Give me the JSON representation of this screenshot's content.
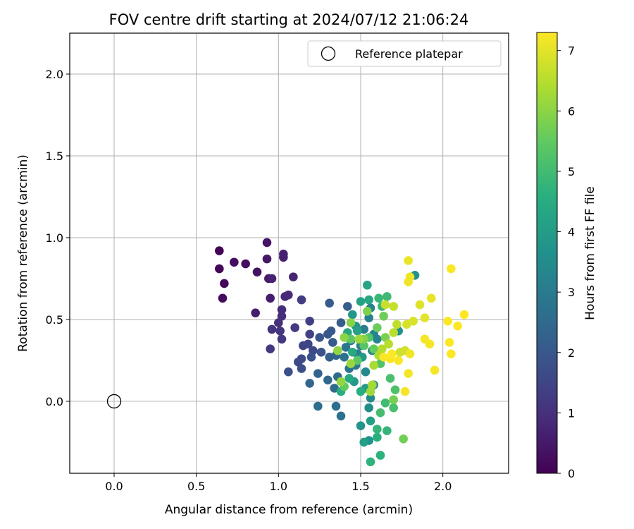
{
  "chart_data": {
    "type": "scatter",
    "title": "FOV centre drift starting at 2024/07/12 21:06:24",
    "xlabel": "Angular distance from reference (arcmin)",
    "ylabel": "Rotation from reference (arcmin)",
    "xlim": [
      -0.27,
      2.4
    ],
    "ylim": [
      -0.44,
      2.25
    ],
    "xticks": [
      0.0,
      0.5,
      1.0,
      1.5,
      2.0
    ],
    "yticks": [
      0.0,
      0.5,
      1.0,
      1.5,
      2.0
    ],
    "xtick_labels": [
      "0.0",
      "0.5",
      "1.0",
      "1.5",
      "2.0"
    ],
    "ytick_labels": [
      "0.0",
      "0.5",
      "1.0",
      "1.5",
      "2.0"
    ],
    "grid": true,
    "legend": {
      "label": "Reference platepar",
      "placement": "top-right",
      "marker": "open-circle"
    },
    "reference_point": {
      "x": 0.0,
      "y": 0.0
    },
    "colorbar": {
      "label": "Hours from first FF file",
      "range": [
        0,
        7.3
      ],
      "ticks": [
        0,
        1,
        2,
        3,
        4,
        5,
        6,
        7
      ],
      "tick_labels": [
        "0",
        "1",
        "2",
        "3",
        "4",
        "5",
        "6",
        "7"
      ],
      "colormap": "viridis",
      "colors": [
        "#440154",
        "#472d7b",
        "#3b528b",
        "#2c728e",
        "#21918c",
        "#28ae80",
        "#5ec962",
        "#addc30",
        "#fde725"
      ]
    },
    "points": [
      {
        "x": 0.64,
        "y": 0.92,
        "h": 0.05
      },
      {
        "x": 0.64,
        "y": 0.81,
        "h": 0.1
      },
      {
        "x": 0.67,
        "y": 0.72,
        "h": 0.15
      },
      {
        "x": 0.66,
        "y": 0.63,
        "h": 0.2
      },
      {
        "x": 0.73,
        "y": 0.85,
        "h": 0.25
      },
      {
        "x": 0.8,
        "y": 0.84,
        "h": 0.3
      },
      {
        "x": 0.87,
        "y": 0.79,
        "h": 0.35
      },
      {
        "x": 0.93,
        "y": 0.97,
        "h": 0.4
      },
      {
        "x": 0.93,
        "y": 0.87,
        "h": 0.45
      },
      {
        "x": 0.94,
        "y": 0.75,
        "h": 0.5
      },
      {
        "x": 0.95,
        "y": 0.63,
        "h": 0.55
      },
      {
        "x": 0.86,
        "y": 0.54,
        "h": 0.6
      },
      {
        "x": 1.03,
        "y": 0.9,
        "h": 0.62
      },
      {
        "x": 1.03,
        "y": 0.88,
        "h": 0.65
      },
      {
        "x": 0.96,
        "y": 0.75,
        "h": 0.7
      },
      {
        "x": 1.09,
        "y": 0.76,
        "h": 0.75
      },
      {
        "x": 1.04,
        "y": 0.64,
        "h": 0.8
      },
      {
        "x": 1.06,
        "y": 0.65,
        "h": 0.85
      },
      {
        "x": 1.02,
        "y": 0.56,
        "h": 0.9
      },
      {
        "x": 1.02,
        "y": 0.52,
        "h": 0.95
      },
      {
        "x": 1.0,
        "y": 0.48,
        "h": 1.0
      },
      {
        "x": 0.96,
        "y": 0.44,
        "h": 1.05
      },
      {
        "x": 1.01,
        "y": 0.43,
        "h": 1.1
      },
      {
        "x": 1.02,
        "y": 0.38,
        "h": 1.15
      },
      {
        "x": 0.95,
        "y": 0.32,
        "h": 1.2
      },
      {
        "x": 1.1,
        "y": 0.45,
        "h": 1.25
      },
      {
        "x": 1.14,
        "y": 0.62,
        "h": 1.3
      },
      {
        "x": 1.19,
        "y": 0.49,
        "h": 1.35
      },
      {
        "x": 1.19,
        "y": 0.41,
        "h": 1.4
      },
      {
        "x": 1.15,
        "y": 0.34,
        "h": 1.45
      },
      {
        "x": 1.18,
        "y": 0.35,
        "h": 1.5
      },
      {
        "x": 1.21,
        "y": 0.31,
        "h": 1.55
      },
      {
        "x": 1.12,
        "y": 0.24,
        "h": 1.6
      },
      {
        "x": 1.14,
        "y": 0.26,
        "h": 1.65
      },
      {
        "x": 1.14,
        "y": 0.2,
        "h": 1.7
      },
      {
        "x": 1.06,
        "y": 0.18,
        "h": 1.75
      },
      {
        "x": 1.2,
        "y": 0.27,
        "h": 1.8
      },
      {
        "x": 1.26,
        "y": 0.3,
        "h": 1.85
      },
      {
        "x": 1.25,
        "y": 0.39,
        "h": 1.9
      },
      {
        "x": 1.3,
        "y": 0.41,
        "h": 1.95
      },
      {
        "x": 1.32,
        "y": 0.43,
        "h": 2.0
      },
      {
        "x": 1.33,
        "y": 0.36,
        "h": 2.05
      },
      {
        "x": 1.31,
        "y": 0.6,
        "h": 2.1
      },
      {
        "x": 1.38,
        "y": 0.48,
        "h": 2.15
      },
      {
        "x": 1.42,
        "y": 0.58,
        "h": 2.2
      },
      {
        "x": 1.31,
        "y": 0.27,
        "h": 2.25
      },
      {
        "x": 1.35,
        "y": 0.28,
        "h": 2.3
      },
      {
        "x": 1.24,
        "y": 0.17,
        "h": 2.35
      },
      {
        "x": 1.19,
        "y": 0.11,
        "h": 2.4
      },
      {
        "x": 1.3,
        "y": 0.13,
        "h": 2.45
      },
      {
        "x": 1.34,
        "y": 0.08,
        "h": 2.5
      },
      {
        "x": 1.36,
        "y": 0.15,
        "h": 2.55
      },
      {
        "x": 1.24,
        "y": -0.03,
        "h": 2.6
      },
      {
        "x": 1.35,
        "y": -0.03,
        "h": 2.65
      },
      {
        "x": 1.38,
        "y": -0.09,
        "h": 2.7
      },
      {
        "x": 1.4,
        "y": 0.27,
        "h": 2.75
      },
      {
        "x": 1.43,
        "y": 0.2,
        "h": 2.8
      },
      {
        "x": 1.41,
        "y": 0.33,
        "h": 2.85
      },
      {
        "x": 1.44,
        "y": 0.37,
        "h": 2.9
      },
      {
        "x": 1.47,
        "y": 0.22,
        "h": 2.95
      },
      {
        "x": 1.48,
        "y": 0.29,
        "h": 3.0
      },
      {
        "x": 1.5,
        "y": 0.34,
        "h": 3.05
      },
      {
        "x": 1.52,
        "y": 0.44,
        "h": 3.1
      },
      {
        "x": 1.55,
        "y": 0.51,
        "h": 3.15
      },
      {
        "x": 1.56,
        "y": 0.57,
        "h": 3.2
      },
      {
        "x": 1.58,
        "y": 0.41,
        "h": 3.25
      },
      {
        "x": 1.6,
        "y": 0.38,
        "h": 3.3
      },
      {
        "x": 1.57,
        "y": 0.31,
        "h": 3.35
      },
      {
        "x": 1.53,
        "y": 0.18,
        "h": 3.4
      },
      {
        "x": 1.56,
        "y": 0.02,
        "h": 3.45
      },
      {
        "x": 1.58,
        "y": 0.1,
        "h": 3.5
      },
      {
        "x": 1.55,
        "y": -0.04,
        "h": 3.55
      },
      {
        "x": 1.73,
        "y": 0.43,
        "h": 3.6
      },
      {
        "x": 1.83,
        "y": 0.77,
        "h": 3.65
      },
      {
        "x": 1.55,
        "y": -0.24,
        "h": 3.7
      },
      {
        "x": 1.5,
        "y": -0.15,
        "h": 3.75
      },
      {
        "x": 1.45,
        "y": 0.53,
        "h": 3.8
      },
      {
        "x": 1.47,
        "y": 0.46,
        "h": 3.85
      },
      {
        "x": 1.51,
        "y": 0.27,
        "h": 3.9
      },
      {
        "x": 1.46,
        "y": 0.12,
        "h": 3.95
      },
      {
        "x": 1.53,
        "y": 0.08,
        "h": 4.0
      },
      {
        "x": 1.52,
        "y": -0.25,
        "h": 4.05
      },
      {
        "x": 1.56,
        "y": -0.12,
        "h": 4.1
      },
      {
        "x": 1.48,
        "y": 0.43,
        "h": 4.15
      },
      {
        "x": 1.5,
        "y": 0.61,
        "h": 4.2
      },
      {
        "x": 1.54,
        "y": 0.71,
        "h": 4.25
      },
      {
        "x": 1.55,
        "y": 0.62,
        "h": 4.3
      },
      {
        "x": 1.42,
        "y": 0.42,
        "h": 4.35
      },
      {
        "x": 1.45,
        "y": 0.3,
        "h": 4.4
      },
      {
        "x": 1.43,
        "y": 0.14,
        "h": 4.45
      },
      {
        "x": 1.38,
        "y": 0.06,
        "h": 4.5
      },
      {
        "x": 1.5,
        "y": 0.06,
        "h": 4.55
      },
      {
        "x": 1.6,
        "y": -0.22,
        "h": 4.6
      },
      {
        "x": 1.62,
        "y": -0.33,
        "h": 4.65
      },
      {
        "x": 1.56,
        "y": -0.37,
        "h": 4.7
      },
      {
        "x": 1.6,
        "y": -0.17,
        "h": 4.75
      },
      {
        "x": 1.66,
        "y": -0.18,
        "h": 4.8
      },
      {
        "x": 1.61,
        "y": 0.63,
        "h": 4.85
      },
      {
        "x": 1.63,
        "y": 0.58,
        "h": 4.9
      },
      {
        "x": 1.66,
        "y": 0.64,
        "h": 4.95
      },
      {
        "x": 1.65,
        "y": -0.01,
        "h": 5.0
      },
      {
        "x": 1.62,
        "y": -0.07,
        "h": 5.05
      },
      {
        "x": 1.7,
        "y": -0.04,
        "h": 5.1
      },
      {
        "x": 1.68,
        "y": 0.14,
        "h": 5.15
      },
      {
        "x": 1.71,
        "y": 0.07,
        "h": 5.2
      },
      {
        "x": 1.62,
        "y": 0.23,
        "h": 5.25
      },
      {
        "x": 1.55,
        "y": 0.39,
        "h": 5.3
      },
      {
        "x": 1.52,
        "y": 0.34,
        "h": 5.35
      },
      {
        "x": 1.48,
        "y": 0.25,
        "h": 5.4
      },
      {
        "x": 1.44,
        "y": 0.38,
        "h": 5.45
      },
      {
        "x": 1.4,
        "y": 0.09,
        "h": 5.5
      },
      {
        "x": 1.58,
        "y": 0.32,
        "h": 5.55
      },
      {
        "x": 1.6,
        "y": 0.45,
        "h": 5.6
      },
      {
        "x": 1.64,
        "y": 0.52,
        "h": 5.65
      },
      {
        "x": 1.76,
        "y": -0.23,
        "h": 5.7
      },
      {
        "x": 1.7,
        "y": 0.01,
        "h": 5.75
      },
      {
        "x": 1.65,
        "y": 0.39,
        "h": 5.8
      },
      {
        "x": 1.54,
        "y": 0.55,
        "h": 5.85
      },
      {
        "x": 1.52,
        "y": 0.38,
        "h": 5.9
      },
      {
        "x": 1.44,
        "y": 0.48,
        "h": 5.95
      },
      {
        "x": 1.4,
        "y": 0.39,
        "h": 6.0
      },
      {
        "x": 1.36,
        "y": 0.31,
        "h": 6.05
      },
      {
        "x": 1.38,
        "y": 0.12,
        "h": 6.1
      },
      {
        "x": 1.44,
        "y": 0.23,
        "h": 6.15
      },
      {
        "x": 1.49,
        "y": 0.38,
        "h": 6.2
      },
      {
        "x": 1.56,
        "y": 0.06,
        "h": 6.25
      },
      {
        "x": 1.57,
        "y": 0.1,
        "h": 6.3
      },
      {
        "x": 1.58,
        "y": 0.22,
        "h": 6.35
      },
      {
        "x": 1.61,
        "y": 0.28,
        "h": 6.4
      },
      {
        "x": 1.63,
        "y": 0.32,
        "h": 6.45
      },
      {
        "x": 1.67,
        "y": 0.35,
        "h": 6.5
      },
      {
        "x": 1.7,
        "y": 0.42,
        "h": 6.55
      },
      {
        "x": 1.72,
        "y": 0.47,
        "h": 6.6
      },
      {
        "x": 1.7,
        "y": 0.58,
        "h": 6.65
      },
      {
        "x": 1.65,
        "y": 0.59,
        "h": 6.7
      },
      {
        "x": 1.74,
        "y": 0.3,
        "h": 6.75
      },
      {
        "x": 1.77,
        "y": 0.31,
        "h": 6.8
      },
      {
        "x": 1.78,
        "y": 0.47,
        "h": 6.85
      },
      {
        "x": 1.82,
        "y": 0.49,
        "h": 6.9
      },
      {
        "x": 1.86,
        "y": 0.59,
        "h": 6.95
      },
      {
        "x": 1.89,
        "y": 0.51,
        "h": 7.0
      },
      {
        "x": 1.93,
        "y": 0.63,
        "h": 7.05
      },
      {
        "x": 1.79,
        "y": 0.86,
        "h": 7.1
      },
      {
        "x": 1.8,
        "y": 0.76,
        "h": 7.12
      },
      {
        "x": 1.79,
        "y": 0.73,
        "h": 7.14
      },
      {
        "x": 1.8,
        "y": 0.29,
        "h": 7.16
      },
      {
        "x": 1.79,
        "y": 0.17,
        "h": 7.18
      },
      {
        "x": 1.77,
        "y": 0.06,
        "h": 7.2
      },
      {
        "x": 1.89,
        "y": 0.38,
        "h": 7.21
      },
      {
        "x": 1.92,
        "y": 0.35,
        "h": 7.22
      },
      {
        "x": 1.95,
        "y": 0.19,
        "h": 7.23
      },
      {
        "x": 1.68,
        "y": 0.26,
        "h": 7.24
      },
      {
        "x": 1.64,
        "y": 0.27,
        "h": 7.25
      },
      {
        "x": 1.73,
        "y": 0.25,
        "h": 7.26
      },
      {
        "x": 1.69,
        "y": 0.29,
        "h": 7.27
      },
      {
        "x": 2.03,
        "y": 0.49,
        "h": 7.28
      },
      {
        "x": 2.04,
        "y": 0.36,
        "h": 7.28
      },
      {
        "x": 2.05,
        "y": 0.29,
        "h": 7.29
      },
      {
        "x": 2.05,
        "y": 0.81,
        "h": 7.29
      },
      {
        "x": 2.09,
        "y": 0.46,
        "h": 7.3
      },
      {
        "x": 2.13,
        "y": 0.53,
        "h": 7.3
      }
    ]
  }
}
